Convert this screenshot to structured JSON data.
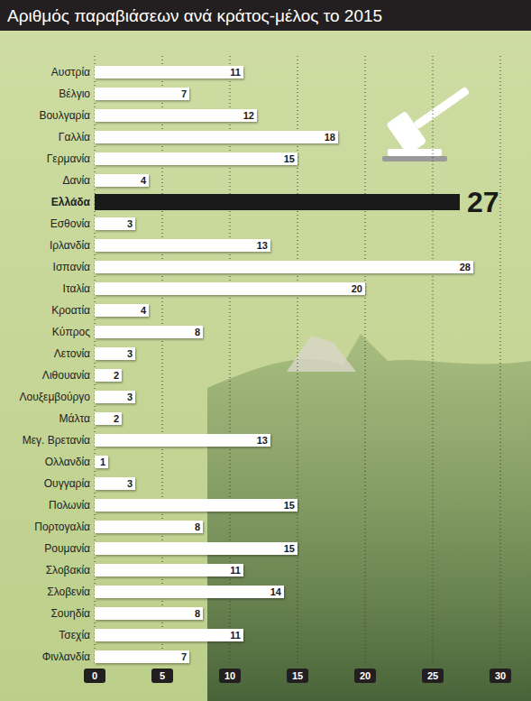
{
  "chart_data": {
    "type": "bar",
    "orientation": "horizontal",
    "title": "Αριθμός παραβιάσεων ανά κράτος-μέλος το 2015",
    "categories": [
      "Αυστρία",
      "Βέλγιο",
      "Βουλγαρία",
      "Γαλλία",
      "Γερμανία",
      "Δανία",
      "Ελλάδα",
      "Εσθονία",
      "Ιρλανδία",
      "Ισπανία",
      "Ιταλία",
      "Κροατία",
      "Κύπρος",
      "Λετονία",
      "Λιθουανία",
      "Λουξεμβούργο",
      "Μάλτα",
      "Μεγ. Βρετανία",
      "Ολλανδία",
      "Ουγγαρία",
      "Πολωνία",
      "Πορτογαλία",
      "Ρουμανία",
      "Σλοβακία",
      "Σλοβενία",
      "Σουηδία",
      "Τσεχία",
      "Φινλανδία"
    ],
    "values": [
      11,
      7,
      12,
      18,
      15,
      4,
      27,
      3,
      13,
      28,
      20,
      4,
      8,
      3,
      2,
      3,
      2,
      13,
      1,
      3,
      15,
      8,
      15,
      11,
      14,
      8,
      11,
      7
    ],
    "colors": [
      "#ffffff",
      "#ffffff",
      "#ffffff",
      "#ffffff",
      "#ffffff",
      "#ffffff",
      "#1a1a1a",
      "#ffffff",
      "#ffffff",
      "#ffffff",
      "#ffffff",
      "#ffffff",
      "#ffffff",
      "#ffffff",
      "#ffffff",
      "#ffffff",
      "#ffffff",
      "#ffffff",
      "#ffffff",
      "#ffffff",
      "#ffffff",
      "#ffffff",
      "#ffffff",
      "#ffffff",
      "#ffffff",
      "#ffffff",
      "#ffffff",
      "#ffffff"
    ],
    "xlim": [
      0,
      30
    ],
    "xticks": [
      0,
      5,
      10,
      15,
      20,
      25,
      30
    ],
    "grid": true,
    "data_labels": true
  }
}
